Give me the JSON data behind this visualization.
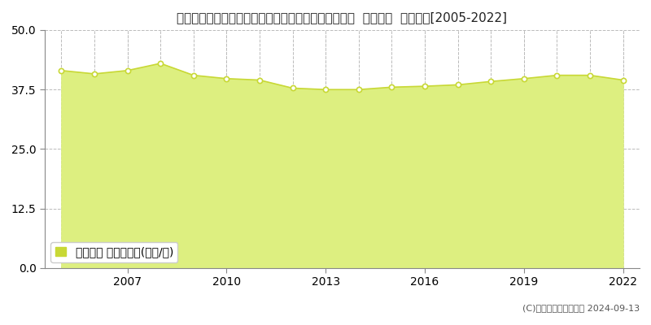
{
  "title": "東京都西多摩郡瑞穂町大字箱根ケ崎字狭山２９５番４  地価公示  地価推移[2005-2022]",
  "years": [
    2005,
    2006,
    2007,
    2008,
    2009,
    2010,
    2011,
    2012,
    2013,
    2014,
    2015,
    2016,
    2017,
    2018,
    2019,
    2020,
    2021,
    2022
  ],
  "values": [
    41.5,
    40.8,
    41.5,
    43.0,
    40.5,
    39.8,
    39.5,
    37.8,
    37.5,
    37.5,
    38.0,
    38.2,
    38.5,
    39.2,
    39.8,
    40.5,
    40.5,
    39.5
  ],
  "ylim": [
    0,
    50
  ],
  "yticks": [
    0,
    12.5,
    25,
    37.5,
    50
  ],
  "xticks": [
    2007,
    2010,
    2013,
    2016,
    2019,
    2022
  ],
  "line_color": "#c8d835",
  "fill_color": "#ddef80",
  "marker_facecolor": "#ffffff",
  "marker_edgecolor": "#c8d835",
  "grid_color": "#bbbbbb",
  "background_color": "#ffffff",
  "legend_label": "地価公示 平均坪単価(万円/坪)",
  "legend_square_color": "#c8d835",
  "copyright_text": "(C)土地価格ドットコム 2024-09-13",
  "title_fontsize": 11,
  "axis_fontsize": 10,
  "legend_fontsize": 10
}
